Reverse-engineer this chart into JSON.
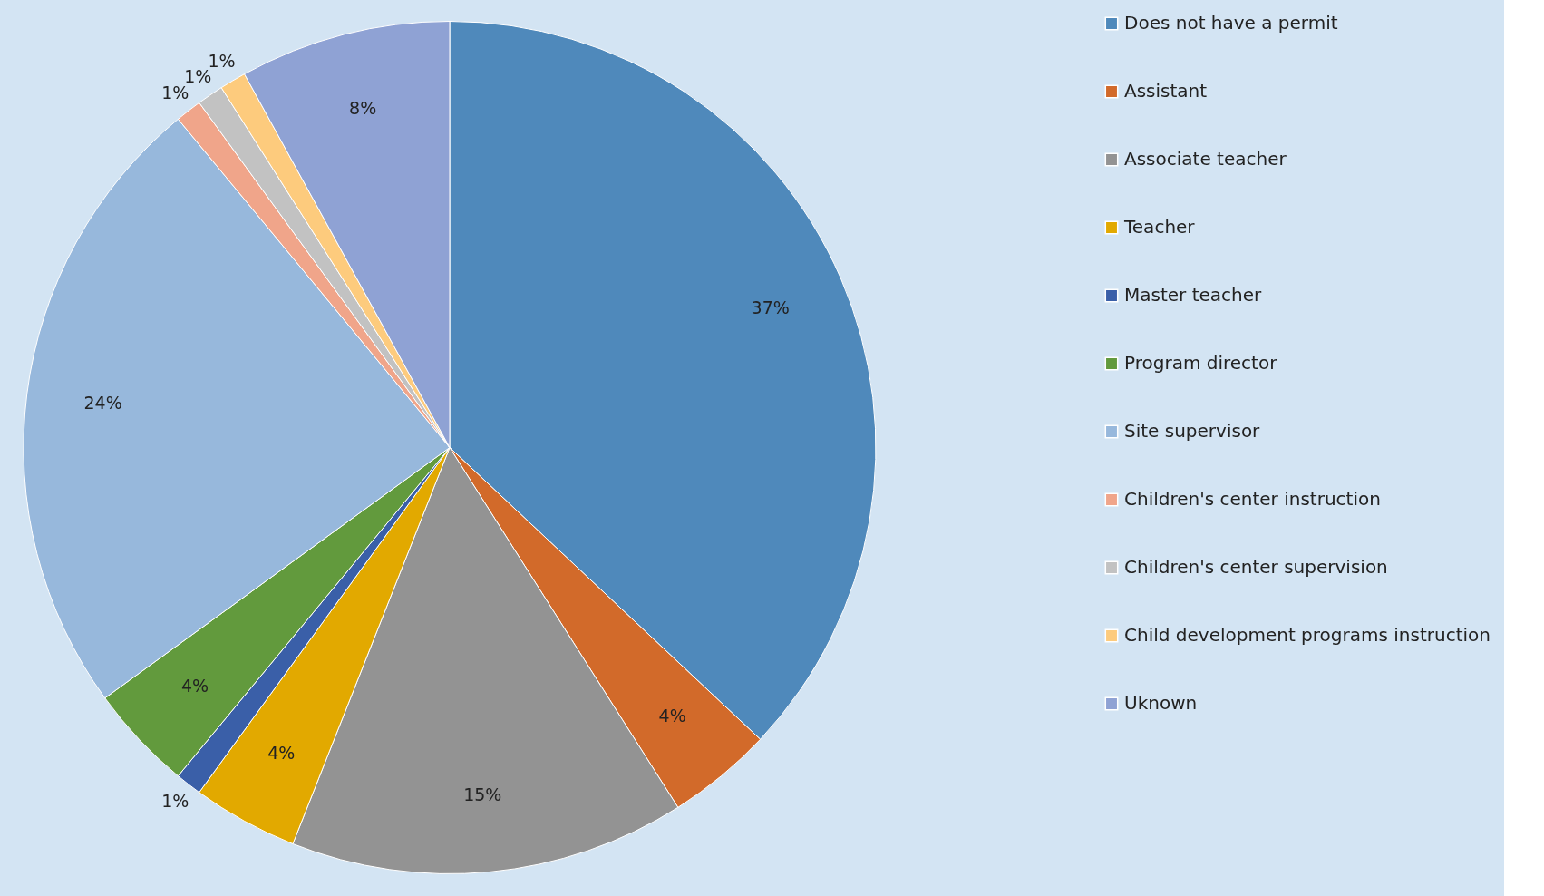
{
  "chart_data": {
    "type": "pie",
    "categories": [
      "Does not have a permit",
      "Assistant",
      "Associate teacher",
      "Teacher",
      "Master teacher",
      "Program director",
      "Site supervisor",
      "Children's center instruction",
      "Children's center supervision",
      "Child development programs instruction",
      "Uknown"
    ],
    "values": [
      37,
      4,
      15,
      4,
      1,
      4,
      24,
      1,
      1,
      1,
      8
    ],
    "colors": [
      "#4f89bb",
      "#d26a2a",
      "#939393",
      "#e2a900",
      "#3a5fa8",
      "#629a3d",
      "#97b8dc",
      "#f0a58a",
      "#c2c2c2",
      "#fdcb7d",
      "#8fa2d4"
    ],
    "value_labels": [
      "37%",
      "4%",
      "15%",
      "4%",
      "1%",
      "4%",
      "24%",
      "1%",
      "1%",
      "1%",
      "8%"
    ],
    "legend": "right"
  }
}
